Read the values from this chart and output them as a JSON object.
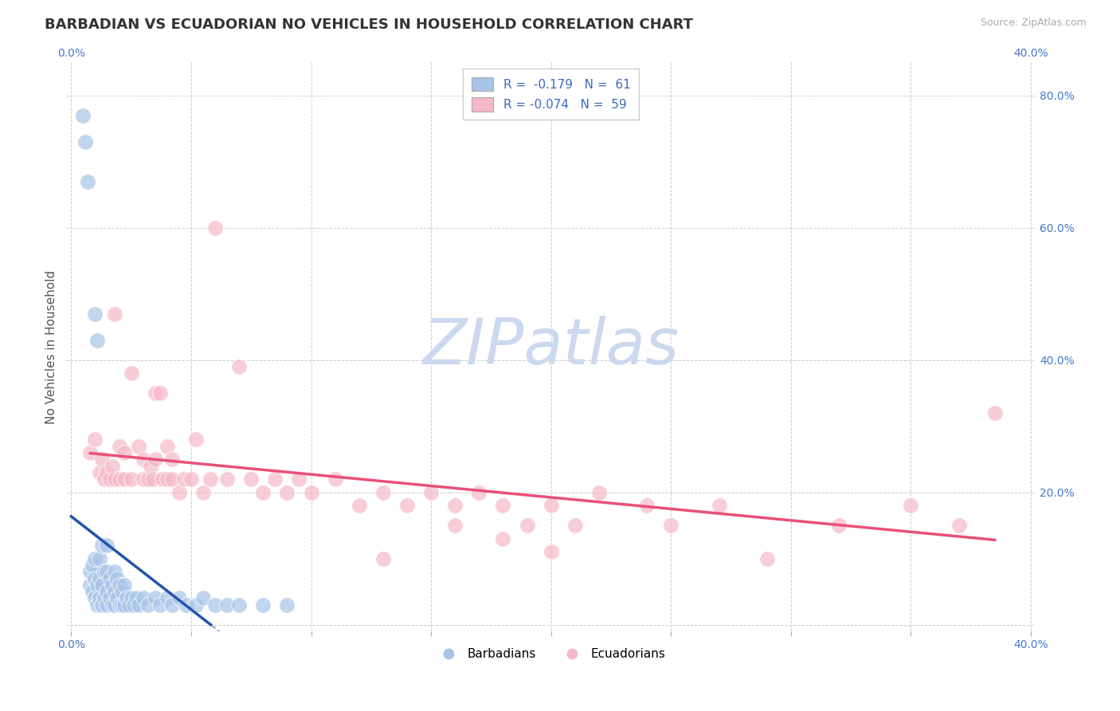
{
  "title": "BARBADIAN VS ECUADORIAN NO VEHICLES IN HOUSEHOLD CORRELATION CHART",
  "source": "Source: ZipAtlas.com",
  "ylabel": "No Vehicles in Household",
  "xlim": [
    -0.002,
    0.402
  ],
  "ylim": [
    -0.01,
    0.85
  ],
  "xticks": [
    0.0,
    0.05,
    0.1,
    0.15,
    0.2,
    0.25,
    0.3,
    0.35,
    0.4
  ],
  "yticks": [
    0.0,
    0.2,
    0.4,
    0.6,
    0.8
  ],
  "blue_color": "#a8c4e8",
  "pink_color": "#f5b8c8",
  "blue_line_color": "#2255aa",
  "pink_line_color": "#e8507a",
  "grid_color": "#cccccc",
  "background_color": "#ffffff",
  "watermark_color": "#ccd8ee",
  "title_fontsize": 13,
  "label_fontsize": 11,
  "tick_fontsize": 10,
  "blue_x": [
    0.005,
    0.006,
    0.007,
    0.008,
    0.008,
    0.009,
    0.009,
    0.01,
    0.01,
    0.01,
    0.011,
    0.011,
    0.012,
    0.012,
    0.012,
    0.013,
    0.013,
    0.013,
    0.014,
    0.014,
    0.015,
    0.015,
    0.015,
    0.015,
    0.016,
    0.016,
    0.017,
    0.017,
    0.018,
    0.018,
    0.018,
    0.019,
    0.019,
    0.02,
    0.02,
    0.021,
    0.021,
    0.022,
    0.022,
    0.023,
    0.024,
    0.025,
    0.026,
    0.027,
    0.028,
    0.03,
    0.032,
    0.035,
    0.037,
    0.04,
    0.042,
    0.045,
    0.048,
    0.052,
    0.055,
    0.06,
    0.065,
    0.07,
    0.08,
    0.09,
    0.01,
    0.011
  ],
  "blue_y": [
    0.77,
    0.73,
    0.67,
    0.06,
    0.08,
    0.05,
    0.09,
    0.04,
    0.07,
    0.1,
    0.03,
    0.06,
    0.04,
    0.07,
    0.1,
    0.03,
    0.06,
    0.12,
    0.04,
    0.08,
    0.03,
    0.05,
    0.08,
    0.12,
    0.04,
    0.07,
    0.03,
    0.06,
    0.03,
    0.05,
    0.08,
    0.04,
    0.07,
    0.03,
    0.06,
    0.03,
    0.05,
    0.03,
    0.06,
    0.04,
    0.03,
    0.04,
    0.03,
    0.04,
    0.03,
    0.04,
    0.03,
    0.04,
    0.03,
    0.04,
    0.03,
    0.04,
    0.03,
    0.03,
    0.04,
    0.03,
    0.03,
    0.03,
    0.03,
    0.03,
    0.47,
    0.43
  ],
  "pink_x": [
    0.008,
    0.01,
    0.012,
    0.013,
    0.014,
    0.015,
    0.016,
    0.017,
    0.018,
    0.018,
    0.02,
    0.02,
    0.022,
    0.022,
    0.025,
    0.025,
    0.028,
    0.03,
    0.03,
    0.032,
    0.033,
    0.034,
    0.035,
    0.035,
    0.037,
    0.038,
    0.04,
    0.04,
    0.042,
    0.042,
    0.045,
    0.047,
    0.05,
    0.052,
    0.055,
    0.058,
    0.06,
    0.065,
    0.07,
    0.075,
    0.08,
    0.085,
    0.09,
    0.095,
    0.1,
    0.11,
    0.12,
    0.13,
    0.14,
    0.15,
    0.16,
    0.17,
    0.18,
    0.19,
    0.2,
    0.21,
    0.22,
    0.25,
    0.29,
    0.27,
    0.32,
    0.35,
    0.37,
    0.385,
    0.2,
    0.24,
    0.16,
    0.13,
    0.18
  ],
  "pink_y": [
    0.26,
    0.28,
    0.23,
    0.25,
    0.22,
    0.23,
    0.22,
    0.24,
    0.22,
    0.47,
    0.22,
    0.27,
    0.22,
    0.26,
    0.22,
    0.38,
    0.27,
    0.22,
    0.25,
    0.22,
    0.24,
    0.22,
    0.25,
    0.35,
    0.35,
    0.22,
    0.22,
    0.27,
    0.22,
    0.25,
    0.2,
    0.22,
    0.22,
    0.28,
    0.2,
    0.22,
    0.6,
    0.22,
    0.39,
    0.22,
    0.2,
    0.22,
    0.2,
    0.22,
    0.2,
    0.22,
    0.18,
    0.2,
    0.18,
    0.2,
    0.18,
    0.2,
    0.18,
    0.15,
    0.18,
    0.15,
    0.2,
    0.15,
    0.1,
    0.18,
    0.15,
    0.18,
    0.15,
    0.32,
    0.11,
    0.18,
    0.15,
    0.1,
    0.13
  ]
}
